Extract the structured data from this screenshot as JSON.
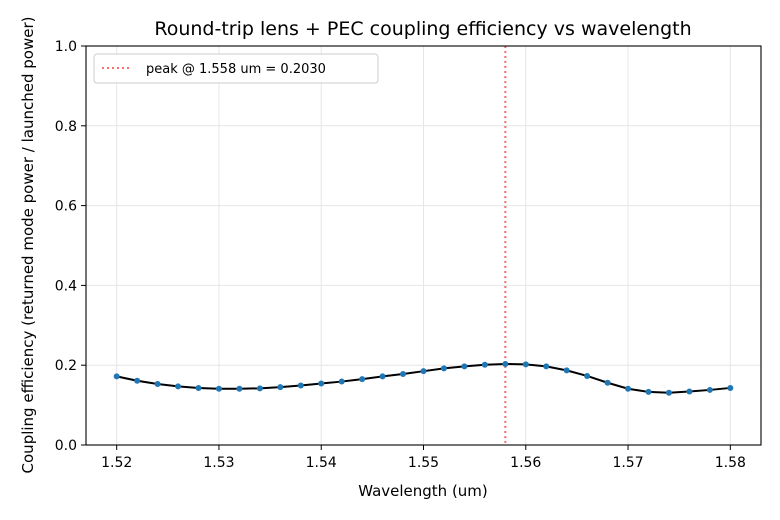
{
  "chart_data": {
    "type": "line",
    "title": "Round-trip lens + PEC coupling efficiency vs wavelength",
    "xlabel": "Wavelength (um)",
    "ylabel": "Coupling efficiency (returned mode power / launched power)",
    "xlim": [
      1.517,
      1.583
    ],
    "ylim": [
      0.0,
      1.0
    ],
    "xticks": [
      1.52,
      1.53,
      1.54,
      1.55,
      1.56,
      1.57,
      1.58
    ],
    "xtick_labels": [
      "1.52",
      "1.53",
      "1.54",
      "1.55",
      "1.56",
      "1.57",
      "1.58"
    ],
    "yticks": [
      0.0,
      0.2,
      0.4,
      0.6,
      0.8,
      1.0
    ],
    "ytick_labels": [
      "0.0",
      "0.2",
      "0.4",
      "0.6",
      "0.8",
      "1.0"
    ],
    "grid": true,
    "legend_position": "top-left",
    "series": [
      {
        "x": [
          1.52,
          1.522,
          1.524,
          1.526,
          1.528,
          1.53,
          1.532,
          1.534,
          1.536,
          1.538,
          1.54,
          1.542,
          1.544,
          1.546,
          1.548,
          1.55,
          1.552,
          1.554,
          1.556,
          1.558,
          1.56,
          1.562,
          1.564,
          1.566,
          1.568,
          1.57,
          1.572,
          1.574,
          1.576,
          1.578,
          1.58
        ],
        "y": [
          0.172,
          0.161,
          0.153,
          0.147,
          0.143,
          0.141,
          0.141,
          0.142,
          0.145,
          0.149,
          0.154,
          0.159,
          0.165,
          0.172,
          0.178,
          0.185,
          0.192,
          0.197,
          0.201,
          0.203,
          0.202,
          0.197,
          0.187,
          0.173,
          0.156,
          0.141,
          0.133,
          0.131,
          0.134,
          0.138,
          0.143
        ],
        "line_color": "#000000",
        "marker_color": "#1f77b4"
      }
    ],
    "peak_line": {
      "x": 1.558,
      "label": "peak @ 1.558 um = 0.2030",
      "color": "#ff6b6b"
    }
  }
}
